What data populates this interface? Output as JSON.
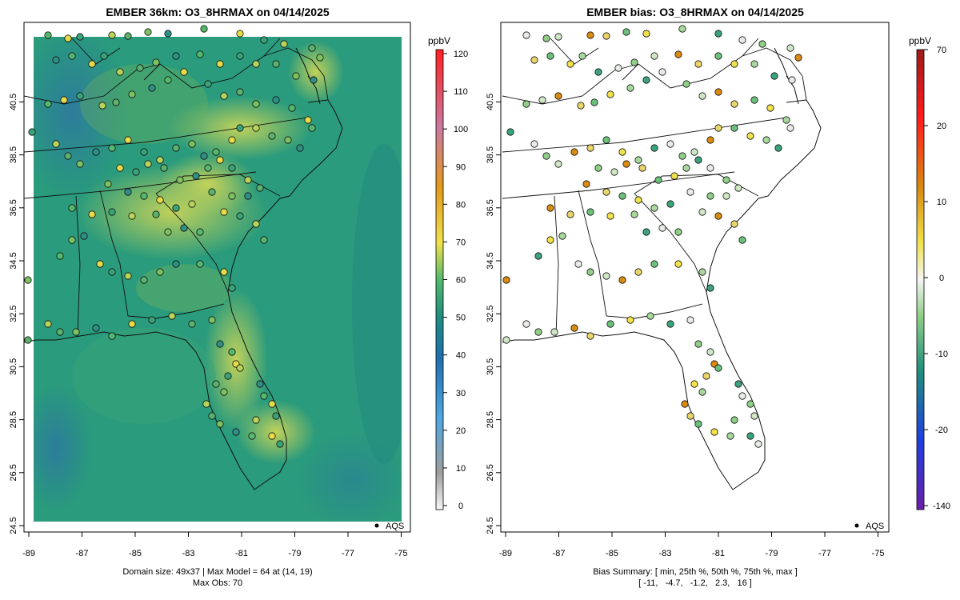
{
  "left_panel": {
    "title": "EMBER 36km: O3_8HRMAX on 04/14/2025",
    "colorbar_unit": "ppbV",
    "colorbar_ticks": [
      "0",
      "10",
      "20",
      "30",
      "40",
      "50",
      "60",
      "70",
      "80",
      "90",
      "100",
      "110",
      "120"
    ],
    "legend_label": "AQS",
    "footer_line1": "Domain size: 49x37 | Max Model = 64 at (14, 19)",
    "footer_line2": "Max Obs: 70"
  },
  "right_panel": {
    "title": "EMBER bias: O3_8HRMAX on 04/14/2025",
    "colorbar_unit": "ppbV",
    "colorbar_ticks": [
      "-140",
      "-20",
      "-10",
      "0",
      "10",
      "20",
      "70"
    ],
    "legend_label": "AQS",
    "footer_line1": "Bias Summary: [ min, 25th %, 50th %, 75th %, max ]",
    "footer_line2": "[ -11,   -4.7,   -1.2,   2.3,   16 ]"
  },
  "axes": {
    "x_ticks": [
      "-89",
      "-87",
      "-85",
      "-83",
      "-81",
      "-79",
      "-77",
      "-75"
    ],
    "y_ticks": [
      "24.5",
      "26.5",
      "28.5",
      "30.5",
      "32.5",
      "34.5",
      "36.5",
      "38.5",
      "40.5"
    ]
  },
  "summary": {
    "domain_size": "49x37",
    "max_model": 64,
    "max_model_cell": [
      14,
      19
    ],
    "max_obs": 70,
    "bias": {
      "min": -11,
      "p25": -4.7,
      "p50": -1.2,
      "p75": 2.3,
      "max": 16
    }
  },
  "colors": {
    "conc_scale": [
      "#f7f7f7",
      "#9e9e9e",
      "#4fa6e0",
      "#1f6fae",
      "#1f8d7e",
      "#55b96d",
      "#f1e14a",
      "#e39a1d",
      "#c97aa0",
      "#ff2020"
    ],
    "bias_scale": [
      "#6a1fa8",
      "#1f3fe0",
      "#1f8d7e",
      "#8fcf86",
      "#f4f4f4",
      "#f1e14a",
      "#d98a10",
      "#ff1c1c",
      "#9e1b1b"
    ],
    "model_field_base": "#2a9b7c",
    "model_field_high": "#bcd15a"
  }
}
